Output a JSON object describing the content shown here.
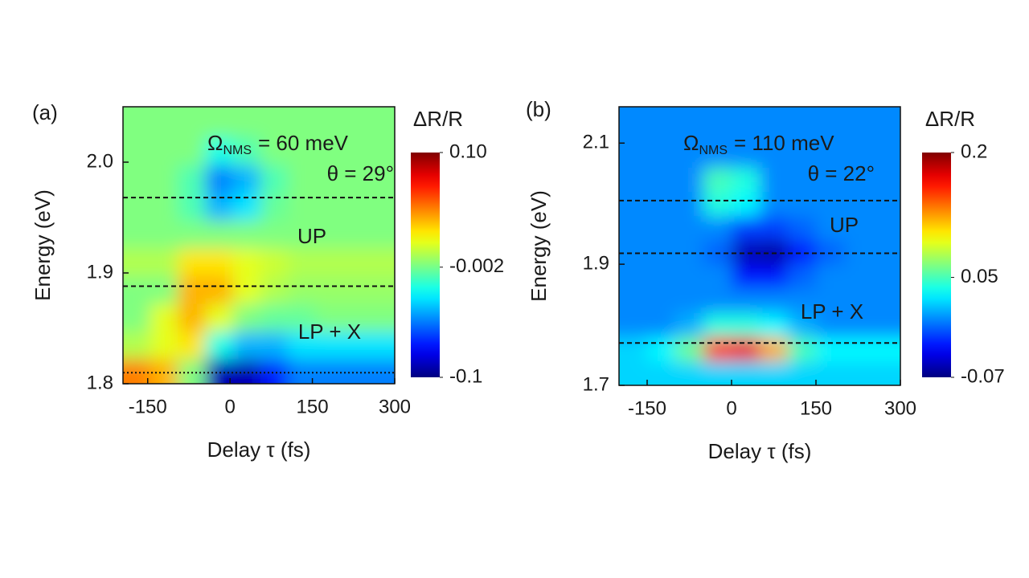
{
  "chart_data": [
    {
      "type": "heatmap",
      "panel": "(a)",
      "xlabel": "Delay τ (fs)",
      "ylabel": "Energy (eV)",
      "colorbar_label": "ΔR/R",
      "xlim": [
        -195,
        300
      ],
      "xticks": [
        -150,
        0,
        150,
        300
      ],
      "ylim": [
        1.8,
        2.05
      ],
      "yticks": [
        1.8,
        1.9,
        {
          "value": 2.0,
          "label": "2.0"
        }
      ],
      "clim": [
        -0.1,
        0.1
      ],
      "cticks": [
        -0.1,
        -0.002,
        {
          "value": 0.1,
          "label": "0.10"
        }
      ],
      "colormap": "jet",
      "omega": {
        "symbol": "Ω",
        "subscript": "NMS",
        "text": "= 60 meV"
      },
      "annotations": [
        "θ = 29°",
        "UP",
        "LP + X"
      ],
      "hlines": [
        {
          "y": 1.968,
          "style": "dashed"
        },
        {
          "y": 1.888,
          "style": "dashed"
        },
        {
          "y": 1.81,
          "style": "dotted"
        }
      ],
      "x": [
        -170,
        -120,
        -70,
        -20,
        30,
        80,
        130,
        180,
        230,
        280
      ],
      "y": [
        1.81,
        1.835,
        1.86,
        1.885,
        1.91,
        1.935,
        1.96,
        1.985,
        2.01,
        2.035
      ],
      "z": [
        [
          0.05,
          0.04,
          0.0,
          -0.09,
          -0.09,
          -0.07,
          -0.05,
          -0.05,
          -0.05,
          -0.05
        ],
        [
          0.01,
          0.02,
          0.03,
          -0.02,
          -0.04,
          -0.04,
          -0.03,
          -0.03,
          -0.03,
          -0.03
        ],
        [
          0.0,
          0.02,
          0.04,
          0.02,
          0.0,
          -0.005,
          -0.005,
          0.0,
          0.0,
          0.0
        ],
        [
          0.0,
          0.0,
          0.04,
          0.04,
          0.02,
          0.01,
          0.005,
          0.005,
          0.005,
          0.005
        ],
        [
          0.01,
          0.01,
          0.03,
          0.03,
          0.02,
          0.015,
          0.01,
          0.01,
          0.01,
          0.01
        ],
        [
          0.0,
          0.0,
          0.0,
          0.0,
          0.0,
          0.0,
          0.0,
          0.0,
          0.0,
          0.0
        ],
        [
          0.0,
          0.0,
          -0.01,
          -0.04,
          -0.03,
          -0.005,
          0.0,
          0.0,
          0.0,
          0.0
        ],
        [
          0.0,
          0.0,
          -0.01,
          -0.05,
          -0.04,
          -0.01,
          0.0,
          0.0,
          0.0,
          0.0
        ],
        [
          0.0,
          0.0,
          0.0,
          -0.02,
          -0.01,
          0.0,
          0.0,
          0.0,
          0.0,
          0.0
        ],
        [
          0.0,
          0.0,
          0.0,
          0.0,
          0.0,
          0.0,
          0.0,
          0.0,
          0.0,
          0.0
        ]
      ]
    },
    {
      "type": "heatmap",
      "panel": "(b)",
      "xlabel": "Delay τ (fs)",
      "ylabel": "Energy (eV)",
      "colorbar_label": "ΔR/R",
      "xlim": [
        -200,
        300
      ],
      "xticks": [
        -150,
        0,
        150,
        300
      ],
      "ylim": [
        1.7,
        2.16
      ],
      "yticks": [
        1.7,
        1.9,
        2.1
      ],
      "clim": [
        -0.07,
        0.2
      ],
      "cticks": [
        -0.07,
        0.05,
        0.2
      ],
      "colormap": "jet",
      "omega": {
        "symbol": "Ω",
        "subscript": "NMS",
        "text": "= 110 meV"
      },
      "annotations": [
        "θ = 22°",
        "UP",
        "LP + X"
      ],
      "hlines": [
        {
          "y": 2.005,
          "style": "dashed"
        },
        {
          "y": 1.918,
          "style": "dashed"
        },
        {
          "y": 1.77,
          "style": "dashed"
        }
      ],
      "x": [
        -175,
        -125,
        -75,
        -25,
        25,
        75,
        125,
        175,
        225,
        275
      ],
      "y": [
        1.72,
        1.76,
        1.8,
        1.84,
        1.88,
        1.92,
        1.96,
        2.0,
        2.04,
        2.08,
        2.12
      ],
      "z": [
        [
          0.02,
          0.02,
          0.02,
          0.02,
          0.02,
          0.02,
          0.02,
          0.02,
          0.02,
          0.02
        ],
        [
          0.02,
          0.03,
          0.06,
          0.15,
          0.17,
          0.12,
          0.05,
          0.03,
          0.03,
          0.03
        ],
        [
          0.0,
          0.0,
          0.01,
          0.04,
          0.04,
          0.03,
          0.01,
          0.0,
          0.0,
          0.0
        ],
        [
          0.0,
          0.0,
          0.0,
          0.0,
          0.0,
          0.0,
          0.0,
          0.0,
          0.0,
          0.0
        ],
        [
          0.0,
          0.0,
          0.0,
          0.0,
          -0.03,
          -0.03,
          -0.01,
          0.0,
          0.0,
          0.0
        ],
        [
          0.0,
          0.0,
          0.0,
          -0.01,
          -0.055,
          -0.06,
          -0.03,
          -0.01,
          0.0,
          0.0
        ],
        [
          0.0,
          0.0,
          0.0,
          0.0,
          -0.02,
          -0.02,
          -0.01,
          0.0,
          0.0,
          0.0
        ],
        [
          0.0,
          0.0,
          0.0,
          0.04,
          0.03,
          0.0,
          0.0,
          0.0,
          0.0,
          0.0
        ],
        [
          0.0,
          0.0,
          0.0,
          0.05,
          0.04,
          0.0,
          0.0,
          0.0,
          0.0,
          0.0
        ],
        [
          0.0,
          0.0,
          0.0,
          0.0,
          0.0,
          0.0,
          0.0,
          0.0,
          0.0,
          0.0
        ],
        [
          0.0,
          0.0,
          0.0,
          0.0,
          0.0,
          0.0,
          0.0,
          0.0,
          0.0,
          0.0
        ]
      ]
    }
  ]
}
